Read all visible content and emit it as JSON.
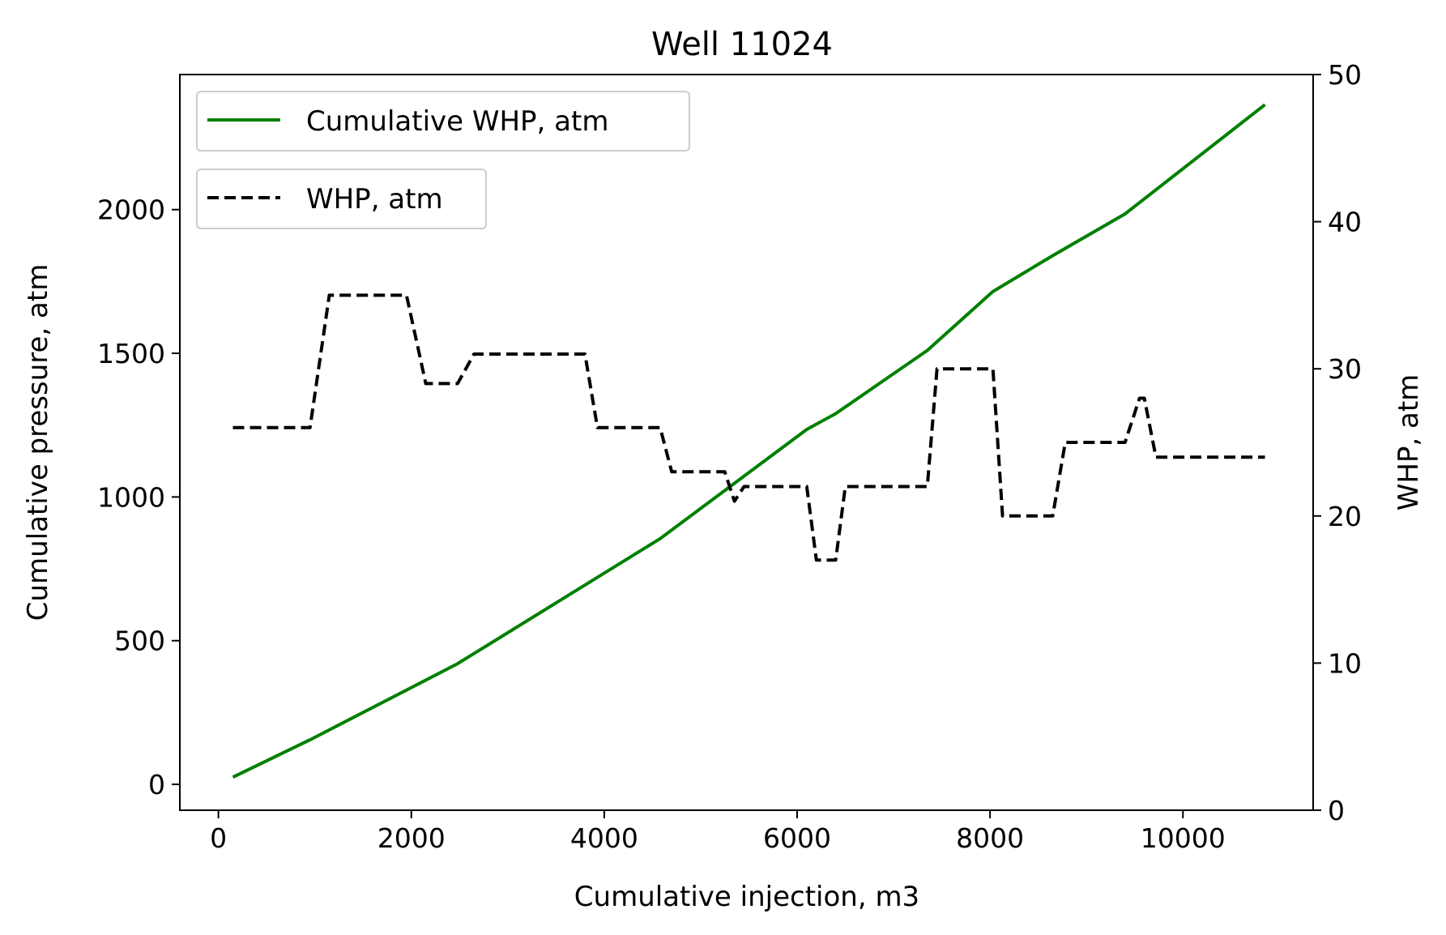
{
  "chart_data": {
    "type": "line",
    "title": "Well 11024",
    "xlabel": "Cumulative injection, m3",
    "ylabel_left": "Cumulative pressure, atm",
    "ylabel_right": "WHP, atm",
    "xlim": [
      -400,
      11350
    ],
    "ylim_left": [
      -90,
      2470
    ],
    "ylim_right": [
      0,
      50
    ],
    "xticks": [
      0,
      2000,
      4000,
      6000,
      8000,
      10000
    ],
    "yticks_left": [
      0,
      500,
      1000,
      1500,
      2000
    ],
    "yticks_right": [
      0,
      10,
      20,
      30,
      40,
      50
    ],
    "grid": false,
    "series": [
      {
        "name": "Cumulative WHP, atm",
        "axis": "left",
        "color": "#008000",
        "style": "solid",
        "x": [
          150,
          950,
          2480,
          4580,
          6100,
          6400,
          7350,
          8030,
          8650,
          9400,
          10850
        ],
        "y": [
          25,
          155,
          420,
          855,
          1235,
          1290,
          1510,
          1715,
          1840,
          1985,
          2365
        ]
      },
      {
        "name": "WHP, atm",
        "axis": "right",
        "color": "#000000",
        "style": "dashed",
        "x": [
          150,
          950,
          1150,
          1950,
          2150,
          2480,
          2650,
          3800,
          3930,
          4580,
          4700,
          5250,
          5350,
          5450,
          5550,
          6100,
          6200,
          6400,
          6500,
          7350,
          7450,
          8030,
          8130,
          8650,
          8780,
          9400,
          9550,
          9600,
          9720,
          10850
        ],
        "y": [
          26,
          26,
          35,
          35,
          29,
          29,
          31,
          31,
          26,
          26,
          23,
          23,
          21,
          22,
          22,
          22,
          17,
          17,
          22,
          22,
          30,
          30,
          20,
          20,
          25,
          25,
          28,
          28,
          24,
          24
        ]
      }
    ],
    "legend": [
      {
        "label": "Cumulative WHP, atm",
        "placement": "upper-left"
      },
      {
        "label": "WHP, atm",
        "placement": "upper-left-below"
      }
    ]
  }
}
